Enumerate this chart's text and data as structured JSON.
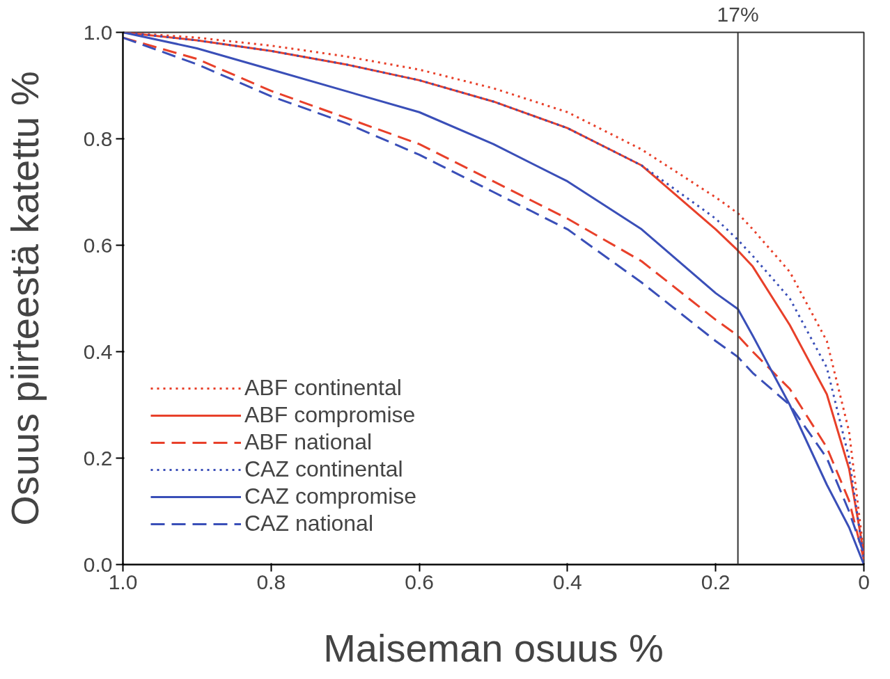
{
  "chart_data": {
    "type": "line",
    "xlabel": "Maiseman osuus %",
    "ylabel": "Osuus piirteestä katettu %",
    "x": [
      1.0,
      0.9,
      0.8,
      0.7,
      0.6,
      0.5,
      0.4,
      0.3,
      0.2,
      0.17,
      0.15,
      0.1,
      0.05,
      0.02,
      0.0
    ],
    "series": [
      {
        "name": "ABF continental",
        "color": "#e8402a",
        "line_style": "dotted",
        "values": [
          1.0,
          0.99,
          0.975,
          0.955,
          0.93,
          0.895,
          0.85,
          0.78,
          0.69,
          0.66,
          0.63,
          0.55,
          0.42,
          0.25,
          0.02
        ]
      },
      {
        "name": "ABF compromise",
        "color": "#e8402a",
        "line_style": "solid",
        "values": [
          1.0,
          0.985,
          0.965,
          0.94,
          0.91,
          0.87,
          0.82,
          0.75,
          0.63,
          0.59,
          0.56,
          0.45,
          0.32,
          0.18,
          0.02
        ]
      },
      {
        "name": "ABF national",
        "color": "#e8402a",
        "line_style": "dashed",
        "values": [
          0.99,
          0.95,
          0.89,
          0.84,
          0.79,
          0.72,
          0.65,
          0.57,
          0.46,
          0.43,
          0.4,
          0.33,
          0.22,
          0.12,
          0.01
        ]
      },
      {
        "name": "CAZ continental",
        "color": "#3a4fb8",
        "line_style": "dotted",
        "values": [
          1.0,
          0.985,
          0.965,
          0.94,
          0.91,
          0.87,
          0.82,
          0.75,
          0.65,
          0.61,
          0.58,
          0.5,
          0.37,
          0.2,
          0.01
        ]
      },
      {
        "name": "CAZ compromise",
        "color": "#3a4fb8",
        "line_style": "solid",
        "values": [
          1.0,
          0.97,
          0.93,
          0.89,
          0.85,
          0.79,
          0.72,
          0.63,
          0.51,
          0.48,
          0.43,
          0.3,
          0.15,
          0.07,
          0.0
        ]
      },
      {
        "name": "CAZ national",
        "color": "#3a4fb8",
        "line_style": "dashed",
        "values": [
          0.99,
          0.94,
          0.88,
          0.83,
          0.77,
          0.7,
          0.63,
          0.53,
          0.42,
          0.39,
          0.36,
          0.3,
          0.2,
          0.1,
          0.02
        ]
      }
    ],
    "xlim": [
      1.0,
      0.0
    ],
    "ylim": [
      0.0,
      1.0
    ],
    "xticks": [
      {
        "value": 1.0,
        "label": "1.0"
      },
      {
        "value": 0.8,
        "label": "0.8"
      },
      {
        "value": 0.6,
        "label": "0.6"
      },
      {
        "value": 0.4,
        "label": "0.4"
      },
      {
        "value": 0.2,
        "label": "0.2"
      },
      {
        "value": 0.0,
        "label": "0"
      }
    ],
    "yticks": [
      {
        "value": 0.0,
        "label": "0.0"
      },
      {
        "value": 0.2,
        "label": "0.2"
      },
      {
        "value": 0.4,
        "label": "0.4"
      },
      {
        "value": 0.6,
        "label": "0.6"
      },
      {
        "value": 0.8,
        "label": "0.8"
      },
      {
        "value": 1.0,
        "label": "1.0"
      }
    ],
    "ref_lines": [
      {
        "axis": "x",
        "value": 0.17,
        "label": "17%",
        "color": "#333333"
      }
    ],
    "grid": false,
    "legend": "bottom left"
  }
}
